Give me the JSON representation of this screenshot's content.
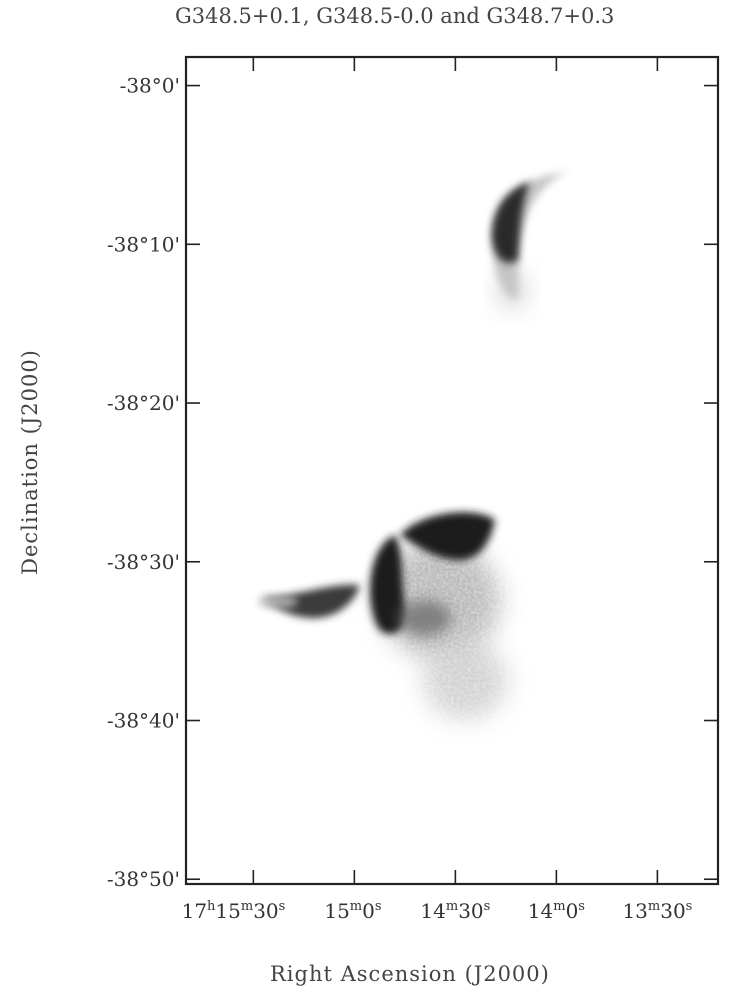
{
  "chart_data": {
    "type": "heatmap",
    "title": "G348.5+0.1, G348.5-0.0 and G348.7+0.3",
    "xlabel": "Right Ascension (J2000)",
    "ylabel": "Declination (J2000)",
    "colormap": "grayscale (white = low, black = high)",
    "grid": false,
    "x_ticks": [
      {
        "label": "17h15m30s",
        "ra_seconds": 930
      },
      {
        "label": "15m0s",
        "ra_seconds": 900
      },
      {
        "label": "14m30s",
        "ra_seconds": 870
      },
      {
        "label": "14m0s",
        "ra_seconds": 840
      },
      {
        "label": "13m30s",
        "ra_seconds": 810
      }
    ],
    "y_ticks": [
      {
        "label": "-38°0'",
        "value": 0
      },
      {
        "label": "-38°10'",
        "value": -10
      },
      {
        "label": "-38°20'",
        "value": -20
      },
      {
        "label": "-38°30'",
        "value": -30
      },
      {
        "label": "-38°40'",
        "value": -40
      },
      {
        "label": "-38°50'",
        "value": -50
      }
    ],
    "xlim_ra_seconds": [
      950,
      792
    ],
    "ylim_arcmin": [
      -50.3,
      1.8
    ],
    "emission_regions": [
      {
        "ra_seconds": 843,
        "dec_arcmin": -10.5,
        "intensity": 0.9,
        "shape": "crescent"
      },
      {
        "ra_seconds": 870,
        "dec_arcmin": -29.5,
        "intensity": 0.85,
        "shape": "arc"
      },
      {
        "ra_seconds": 888,
        "dec_arcmin": -32.0,
        "intensity": 0.95,
        "shape": "arc"
      },
      {
        "ra_seconds": 860,
        "dec_arcmin": -33.0,
        "intensity": 0.25,
        "shape": "diffuse"
      },
      {
        "ra_seconds": 865,
        "dec_arcmin": -38.5,
        "intensity": 0.2,
        "shape": "diffuse"
      },
      {
        "ra_seconds": 912,
        "dec_arcmin": -33.0,
        "intensity": 0.8,
        "shape": "tail"
      }
    ]
  }
}
